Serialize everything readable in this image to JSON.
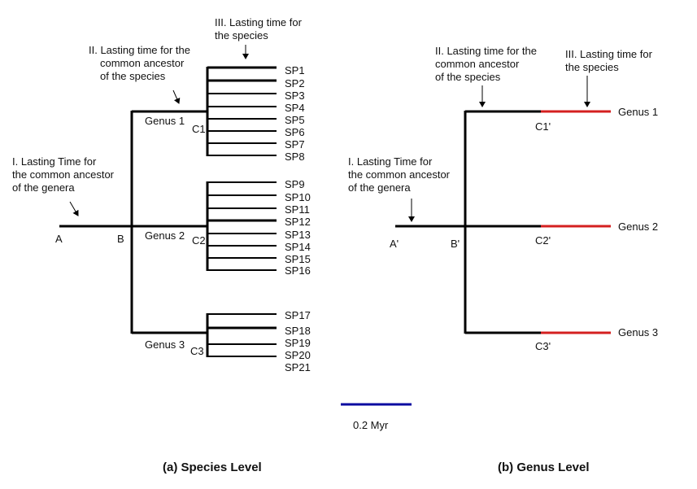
{
  "species_panel": {
    "annotation_1": [
      "I. Lasting Time for",
      "the common ancestor",
      "of the genera"
    ],
    "annotation_2": [
      "II. Lasting time for the",
      "common ancestor",
      "of the species"
    ],
    "annotation_3": [
      "III. Lasting time for",
      "the species"
    ],
    "node_a": "A",
    "node_b": "B",
    "genera": [
      {
        "label": "Genus 1",
        "node": "C1",
        "species": [
          "SP1",
          "SP2",
          "SP3",
          "SP4",
          "SP5",
          "SP6",
          "SP7",
          "SP8"
        ]
      },
      {
        "label": "Genus 2",
        "node": "C2",
        "species": [
          "SP9",
          "SP10",
          "SP11",
          "SP12",
          "SP13",
          "SP14",
          "SP15",
          "SP16"
        ]
      },
      {
        "label": "Genus 3",
        "node": "C3",
        "species": [
          "SP17",
          "SP18",
          "SP19",
          "SP20",
          "SP21"
        ]
      }
    ],
    "caption": "(a) Species Level"
  },
  "genus_panel": {
    "annotation_1": [
      "I. Lasting Time for",
      "the common ancestor",
      "of the genera"
    ],
    "annotation_2": [
      "II. Lasting time for the",
      "common ancestor",
      "of the species"
    ],
    "annotation_3": [
      "III. Lasting time for",
      "the species"
    ],
    "node_a": "A'",
    "node_b": "B'",
    "genera": [
      {
        "label": "Genus 1",
        "node": "C1'"
      },
      {
        "label": "Genus 2",
        "node": "C2'"
      },
      {
        "label": "Genus 3",
        "node": "C3'"
      }
    ],
    "caption": "(b) Genus Level"
  },
  "scale_bar": {
    "label": "0.2 Myr",
    "color": "#0a0aa0"
  },
  "colors": {
    "species_branch": "#d42020",
    "tree_line": "#000000"
  }
}
